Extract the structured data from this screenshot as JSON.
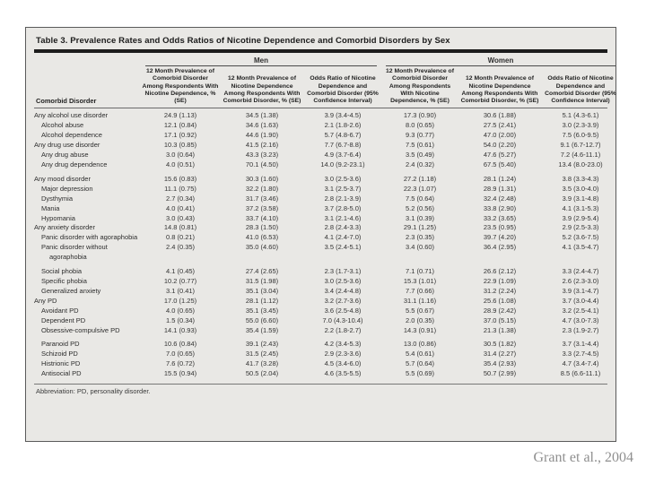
{
  "attribution": "Grant et al., 2004",
  "colors": {
    "slide_bg": "#ffffff",
    "card_bg": "#e9e8e5",
    "text": "#2f2f2f",
    "thick_rule": "#1c1c1c",
    "attribution_text": "#8f8f8f"
  },
  "table": {
    "title": "Table 3. Prevalence Rates and Odds Ratios of Nicotine Dependence and Comorbid Disorders by Sex",
    "groups": {
      "men": "Men",
      "women": "Women"
    },
    "col_headers": {
      "disorder": "Comorbid Disorder",
      "men": [
        "12 Month Prevalence of Comorbid Disorder Among Respondents With Nicotine Dependence, % (SE)",
        "12 Month Prevalence of Nicotine Dependence Among Respondents With Comorbid Disorder, % (SE)",
        "Odds Ratio of Nicotine Dependence and Comorbid Disorder (95% Confidence Interval)"
      ],
      "women": [
        "12 Month Prevalence of Comorbid Disorder Among Respondents With Nicotine Dependence, % (SE)",
        "12 Month Prevalence of Nicotine Dependence Among Respondents With Comorbid Disorder, % (SE)",
        "Odds Ratio of Nicotine Dependence and Comorbid Disorder (95% Confidence Interval)"
      ]
    },
    "rows": [
      {
        "label": "Any alcohol use disorder",
        "indent": 0,
        "gap": false,
        "men": [
          "24.9 (1.13)",
          "34.5 (1.38)",
          "3.9 (3.4-4.5)"
        ],
        "women": [
          "17.3 (0.90)",
          "30.6 (1.88)",
          "5.1 (4.3-6.1)"
        ]
      },
      {
        "label": "Alcohol abuse",
        "indent": 1,
        "gap": false,
        "men": [
          "12.1 (0.84)",
          "34.6 (1.63)",
          "2.1 (1.8-2.6)"
        ],
        "women": [
          "8.0 (0.65)",
          "27.5 (2.41)",
          "3.0 (2.3-3.9)"
        ]
      },
      {
        "label": "Alcohol dependence",
        "indent": 1,
        "gap": false,
        "men": [
          "17.1 (0.92)",
          "44.6 (1.90)",
          "5.7 (4.8-6.7)"
        ],
        "women": [
          "9.3 (0.77)",
          "47.0 (2.00)",
          "7.5 (6.0-9.5)"
        ]
      },
      {
        "label": "Any drug use disorder",
        "indent": 0,
        "gap": false,
        "men": [
          "10.3 (0.85)",
          "41.5 (2.16)",
          "7.7 (6.7-8.8)"
        ],
        "women": [
          "7.5 (0.61)",
          "54.0 (2.20)",
          "9.1 (6.7-12.7)"
        ]
      },
      {
        "label": "Any drug abuse",
        "indent": 1,
        "gap": false,
        "men": [
          "3.0 (0.64)",
          "43.3 (3.23)",
          "4.9 (3.7-6.4)"
        ],
        "women": [
          "3.5 (0.49)",
          "47.6 (5.27)",
          "7.2 (4.6-11.1)"
        ]
      },
      {
        "label": "Any drug dependence",
        "indent": 1,
        "gap": false,
        "men": [
          "4.0 (0.51)",
          "70.1 (4.50)",
          "14.0 (9.2-23.1)"
        ],
        "women": [
          "2.4 (0.32)",
          "67.5 (5.40)",
          "13.4 (8.0-23.0)"
        ]
      },
      {
        "label": "Any mood disorder",
        "indent": 0,
        "gap": true,
        "men": [
          "15.6 (0.83)",
          "30.3 (1.60)",
          "3.0 (2.5-3.6)"
        ],
        "women": [
          "27.2 (1.18)",
          "28.1 (1.24)",
          "3.8 (3.3-4.3)"
        ]
      },
      {
        "label": "Major depression",
        "indent": 1,
        "gap": false,
        "men": [
          "11.1 (0.75)",
          "32.2 (1.80)",
          "3.1 (2.5-3.7)"
        ],
        "women": [
          "22.3 (1.07)",
          "28.9 (1.31)",
          "3.5 (3.0-4.0)"
        ]
      },
      {
        "label": "Dysthymia",
        "indent": 1,
        "gap": false,
        "men": [
          "2.7 (0.34)",
          "31.7 (3.46)",
          "2.8 (2.1-3.9)"
        ],
        "women": [
          "7.5 (0.64)",
          "32.4 (2.48)",
          "3.9 (3.1-4.8)"
        ]
      },
      {
        "label": "Mania",
        "indent": 1,
        "gap": false,
        "men": [
          "4.0 (0.41)",
          "37.2 (3.58)",
          "3.7 (2.8-5.0)"
        ],
        "women": [
          "5.2 (0.56)",
          "33.8 (2.90)",
          "4.1 (3.1-5.3)"
        ]
      },
      {
        "label": "Hypomania",
        "indent": 1,
        "gap": false,
        "men": [
          "3.0 (0.43)",
          "33.7 (4.10)",
          "3.1 (2.1-4.6)"
        ],
        "women": [
          "3.1 (0.39)",
          "33.2 (3.65)",
          "3.9 (2.9-5.4)"
        ]
      },
      {
        "label": "Any anxiety disorder",
        "indent": 0,
        "gap": false,
        "men": [
          "14.8 (0.81)",
          "28.3 (1.50)",
          "2.8 (2.4-3.3)"
        ],
        "women": [
          "29.1 (1.25)",
          "23.5 (0.95)",
          "2.9 (2.5-3.3)"
        ]
      },
      {
        "label": "Panic disorder with agoraphobia",
        "indent": 1,
        "gap": false,
        "men": [
          "0.8 (0.21)",
          "41.0 (6.53)",
          "4.1 (2.4-7.0)"
        ],
        "women": [
          "2.3 (0.35)",
          "39.7 (4.20)",
          "5.2 (3.6-7.5)"
        ]
      },
      {
        "label": "Panic disorder without agoraphobia",
        "indent": 1,
        "gap": false,
        "men": [
          "2.4 (0.35)",
          "35.0 (4.60)",
          "3.5 (2.4-5.1)"
        ],
        "women": [
          "3.4 (0.60)",
          "36.4 (2.95)",
          "4.1 (3.5-4.7)"
        ]
      },
      {
        "label": "Social phobia",
        "indent": 1,
        "gap": true,
        "men": [
          "4.1 (0.45)",
          "27.4 (2.65)",
          "2.3 (1.7-3.1)"
        ],
        "women": [
          "7.1 (0.71)",
          "26.6 (2.12)",
          "3.3 (2.4-4.7)"
        ]
      },
      {
        "label": "Specific phobia",
        "indent": 1,
        "gap": false,
        "men": [
          "10.2 (0.77)",
          "31.5 (1.98)",
          "3.0 (2.5-3.6)"
        ],
        "women": [
          "15.3 (1.01)",
          "22.9 (1.09)",
          "2.6 (2.3-3.0)"
        ]
      },
      {
        "label": "Generalized anxiety",
        "indent": 1,
        "gap": false,
        "men": [
          "3.1 (0.41)",
          "35.1 (3.04)",
          "3.4 (2.4-4.8)"
        ],
        "women": [
          "7.7 (0.66)",
          "31.2 (2.24)",
          "3.9 (3.1-4.7)"
        ]
      },
      {
        "label": "Any PD",
        "indent": 0,
        "gap": false,
        "men": [
          "17.0 (1.25)",
          "28.1 (1.12)",
          "3.2 (2.7-3.6)"
        ],
        "women": [
          "31.1 (1.16)",
          "25.6 (1.08)",
          "3.7 (3.0-4.4)"
        ]
      },
      {
        "label": "Avoidant PD",
        "indent": 1,
        "gap": false,
        "men": [
          "4.0 (0.65)",
          "35.1 (3.45)",
          "3.6 (2.5-4.8)"
        ],
        "women": [
          "5.5 (0.67)",
          "28.9 (2.42)",
          "3.2 (2.5-4.1)"
        ]
      },
      {
        "label": "Dependent PD",
        "indent": 1,
        "gap": false,
        "men": [
          "1.5 (0.34)",
          "55.0 (6.60)",
          "7.0 (4.3-10.4)"
        ],
        "women": [
          "2.0 (0.35)",
          "37.0 (5.15)",
          "4.7 (3.0-7.3)"
        ]
      },
      {
        "label": "Obsessive-compulsive PD",
        "indent": 1,
        "gap": false,
        "men": [
          "14.1 (0.93)",
          "35.4 (1.59)",
          "2.2 (1.8-2.7)"
        ],
        "women": [
          "14.3 (0.91)",
          "21.3 (1.38)",
          "2.3 (1.9-2.7)"
        ]
      },
      {
        "label": "Paranoid PD",
        "indent": 1,
        "gap": true,
        "men": [
          "10.6 (0.84)",
          "39.1 (2.43)",
          "4.2 (3.4-5.3)"
        ],
        "women": [
          "13.0 (0.86)",
          "30.5 (1.82)",
          "3.7 (3.1-4.4)"
        ]
      },
      {
        "label": "Schizoid PD",
        "indent": 1,
        "gap": false,
        "men": [
          "7.0 (0.65)",
          "31.5 (2.45)",
          "2.9 (2.3-3.6)"
        ],
        "women": [
          "5.4 (0.61)",
          "31.4 (2.27)",
          "3.3 (2.7-4.5)"
        ]
      },
      {
        "label": "Histrionic PD",
        "indent": 1,
        "gap": false,
        "men": [
          "7.6 (0.72)",
          "41.7 (3.28)",
          "4.5 (3.4-6.0)"
        ],
        "women": [
          "5.7 (0.64)",
          "35.4 (2.93)",
          "4.7 (3.4-7.4)"
        ]
      },
      {
        "label": "Antisocial PD",
        "indent": 1,
        "gap": false,
        "men": [
          "15.5 (0.94)",
          "50.5 (2.04)",
          "4.6 (3.5-5.5)"
        ],
        "women": [
          "5.5 (0.69)",
          "50.7 (2.99)",
          "8.5 (6.6-11.1)"
        ]
      }
    ],
    "footnote": "Abbreviation: PD, personality disorder."
  }
}
